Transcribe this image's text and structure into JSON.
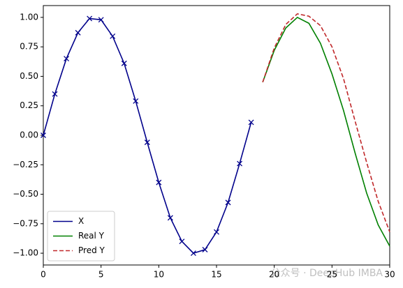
{
  "chart_data": {
    "type": "line",
    "series": [
      {
        "name": "X",
        "color": "#00008b",
        "marker": "x",
        "linestyle": "solid",
        "x": [
          0,
          1,
          2,
          3,
          4,
          5,
          6,
          7,
          8,
          9,
          10,
          11,
          12,
          13,
          14,
          15,
          16,
          17,
          18
        ],
        "values": [
          0.0,
          0.35,
          0.65,
          0.87,
          0.99,
          0.98,
          0.84,
          0.61,
          0.29,
          -0.06,
          -0.4,
          -0.7,
          -0.9,
          -1.0,
          -0.97,
          -0.82,
          -0.57,
          -0.24,
          0.11
        ]
      },
      {
        "name": "Real Y",
        "color": "#008000",
        "linestyle": "solid",
        "x": [
          19,
          20,
          21,
          22,
          23,
          24,
          25,
          26,
          27,
          28,
          29,
          30
        ],
        "values": [
          0.45,
          0.72,
          0.91,
          1.0,
          0.95,
          0.78,
          0.52,
          0.21,
          -0.15,
          -0.49,
          -0.76,
          -0.94
        ]
      },
      {
        "name": "Pred Y",
        "color": "#c0282a",
        "linestyle": "dashed",
        "x": [
          19,
          20,
          21,
          22,
          23,
          24,
          25,
          26,
          27,
          28,
          29,
          30
        ],
        "values": [
          0.45,
          0.74,
          0.94,
          1.03,
          1.01,
          0.93,
          0.75,
          0.48,
          0.12,
          -0.23,
          -0.56,
          -0.82
        ]
      }
    ],
    "xlim": [
      0,
      30
    ],
    "xticks": [
      0,
      5,
      10,
      15,
      20,
      25,
      30
    ],
    "ylim": [
      -1.1,
      1.1
    ],
    "yticks": [
      {
        "value": -1,
        "label": "−1.00"
      },
      {
        "value": -0.75,
        "label": "−0.75"
      },
      {
        "value": -0.5,
        "label": "−0.50"
      },
      {
        "value": -0.25,
        "label": "−0.25"
      },
      {
        "value": 0,
        "label": "0.00"
      },
      {
        "value": 0.25,
        "label": "0.25"
      },
      {
        "value": 0.5,
        "label": "0.50"
      },
      {
        "value": 0.75,
        "label": "0.75"
      },
      {
        "value": 1,
        "label": "1.00"
      }
    ],
    "legend": "lower left",
    "watermark": "公众号 · DeepHub IMBA"
  }
}
